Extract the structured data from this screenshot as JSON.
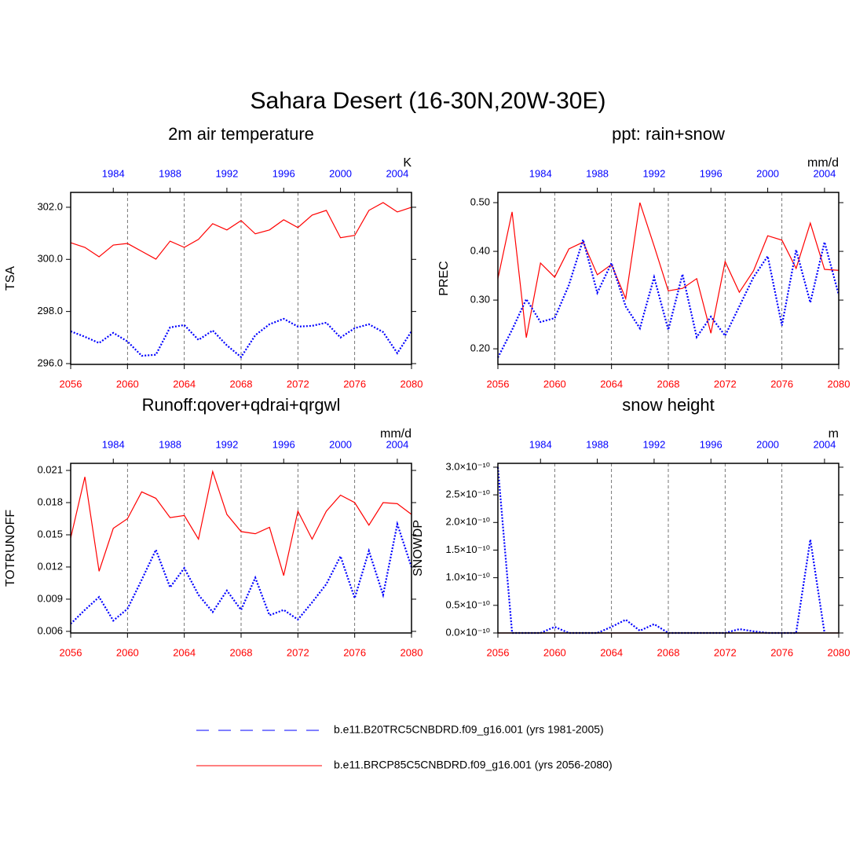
{
  "title": "Sahara Desert (16-30N,20W-30E)",
  "chart_data": [
    {
      "type": "line",
      "title": "2m air temperature",
      "units": "K",
      "ylabel": "TSA",
      "x": [
        2056,
        2057,
        2058,
        2059,
        2060,
        2061,
        2062,
        2063,
        2064,
        2065,
        2066,
        2067,
        2068,
        2069,
        2070,
        2071,
        2072,
        2073,
        2074,
        2075,
        2076,
        2077,
        2078,
        2079,
        2080
      ],
      "xlim": [
        2056,
        2080
      ],
      "xticks": [
        2056,
        2060,
        2064,
        2068,
        2072,
        2076,
        2080
      ],
      "xtick_color": "#ff0000",
      "x2lim": [
        1981,
        2005
      ],
      "x2ticks": [
        1984,
        1988,
        1992,
        1996,
        2000,
        2004
      ],
      "x2tick_color": "#0000ff",
      "ylim": [
        295.97,
        302.57
      ],
      "yticks": [
        {
          "value": 296,
          "label": "296.0"
        },
        {
          "value": 298,
          "label": "298.0"
        },
        {
          "value": 300,
          "label": "300.0"
        },
        {
          "value": 302,
          "label": "302.0"
        }
      ],
      "xgrid": true,
      "series": [
        {
          "name": "b.e11.B20TRC5CNBDRD.f09_g16.001 (yrs 1981-2005)",
          "color": "#0000ff",
          "style": "dotted",
          "values": [
            297.24,
            297.03,
            296.79,
            297.18,
            296.85,
            296.3,
            296.34,
            297.39,
            297.48,
            296.91,
            297.27,
            296.7,
            296.25,
            297.09,
            297.51,
            297.72,
            297.42,
            297.45,
            297.57,
            297.0,
            297.36,
            297.51,
            297.21,
            296.4,
            297.24
          ]
        },
        {
          "name": "b.e11.BRCP85C5CNBDRD.f09_g16.001 (yrs 2056-2080)",
          "color": "#ff0000",
          "style": "solid",
          "values": [
            300.64,
            300.46,
            300.1,
            300.55,
            300.61,
            300.31,
            300.01,
            300.7,
            300.46,
            300.77,
            301.37,
            301.13,
            301.49,
            300.98,
            301.13,
            301.52,
            301.22,
            301.7,
            301.88,
            300.83,
            300.92,
            301.88,
            302.18,
            301.82,
            302.0
          ]
        }
      ]
    },
    {
      "type": "line",
      "title": "ppt: rain+snow",
      "units": "mm/d",
      "ylabel": "PREC",
      "x": [
        2056,
        2057,
        2058,
        2059,
        2060,
        2061,
        2062,
        2063,
        2064,
        2065,
        2066,
        2067,
        2068,
        2069,
        2070,
        2071,
        2072,
        2073,
        2074,
        2075,
        2076,
        2077,
        2078,
        2079,
        2080
      ],
      "xlim": [
        2056,
        2080
      ],
      "xticks": [
        2056,
        2060,
        2064,
        2068,
        2072,
        2076,
        2080
      ],
      "xtick_color": "#ff0000",
      "x2lim": [
        1981,
        2005
      ],
      "x2ticks": [
        1984,
        1988,
        1992,
        1996,
        2000,
        2004
      ],
      "x2tick_color": "#0000ff",
      "ylim": [
        0.168,
        0.521
      ],
      "yticks": [
        {
          "value": 0.2,
          "label": "0.20"
        },
        {
          "value": 0.3,
          "label": "0.30"
        },
        {
          "value": 0.4,
          "label": "0.40"
        },
        {
          "value": 0.5,
          "label": "0.50"
        }
      ],
      "xgrid": true,
      "series": [
        {
          "color": "#0000ff",
          "style": "dotted",
          "values": [
            0.182,
            0.239,
            0.302,
            0.255,
            0.263,
            0.331,
            0.424,
            0.315,
            0.376,
            0.287,
            0.242,
            0.347,
            0.239,
            0.353,
            0.224,
            0.266,
            0.227,
            0.287,
            0.347,
            0.39,
            0.248,
            0.403,
            0.295,
            0.419,
            0.311
          ]
        },
        {
          "color": "#ff0000",
          "style": "solid",
          "values": [
            0.344,
            0.481,
            0.223,
            0.376,
            0.347,
            0.405,
            0.419,
            0.352,
            0.373,
            0.303,
            0.5,
            0.411,
            0.319,
            0.324,
            0.344,
            0.232,
            0.379,
            0.316,
            0.36,
            0.432,
            0.423,
            0.365,
            0.458,
            0.363,
            0.361
          ]
        }
      ]
    },
    {
      "type": "line",
      "title": "Runoff:qover+qdrai+qrgwl",
      "units": "mm/d",
      "ylabel": "TOTRUNOFF",
      "x": [
        2056,
        2057,
        2058,
        2059,
        2060,
        2061,
        2062,
        2063,
        2064,
        2065,
        2066,
        2067,
        2068,
        2069,
        2070,
        2071,
        2072,
        2073,
        2074,
        2075,
        2076,
        2077,
        2078,
        2079,
        2080
      ],
      "xlim": [
        2056,
        2080
      ],
      "xticks": [
        2056,
        2060,
        2064,
        2068,
        2072,
        2076,
        2080
      ],
      "xtick_color": "#ff0000",
      "x2lim": [
        1981,
        2005
      ],
      "x2ticks": [
        1984,
        1988,
        1992,
        1996,
        2000,
        2004
      ],
      "x2tick_color": "#0000ff",
      "ylim": [
        0.00585,
        0.02166
      ],
      "yticks": [
        0.006,
        0.009,
        0.012,
        0.015,
        0.018,
        0.021
      ],
      "xgrid": true,
      "series": [
        {
          "color": "#0000ff",
          "style": "dotted",
          "values": [
            0.0067,
            0.008,
            0.0092,
            0.007,
            0.0081,
            0.0108,
            0.0136,
            0.0101,
            0.0119,
            0.0094,
            0.0078,
            0.0098,
            0.008,
            0.011,
            0.0075,
            0.008,
            0.0071,
            0.0087,
            0.0104,
            0.013,
            0.0091,
            0.0135,
            0.0094,
            0.016,
            0.012
          ]
        },
        {
          "color": "#ff0000",
          "style": "solid",
          "values": [
            0.0147,
            0.0204,
            0.0116,
            0.0156,
            0.0165,
            0.019,
            0.0184,
            0.0166,
            0.0168,
            0.0146,
            0.0209,
            0.0169,
            0.0153,
            0.0151,
            0.0157,
            0.0112,
            0.0172,
            0.0146,
            0.0172,
            0.0187,
            0.018,
            0.0159,
            0.018,
            0.0179,
            0.0169
          ]
        }
      ]
    },
    {
      "type": "line",
      "title": "snow height",
      "units": "m",
      "ylabel": "SNOWDP",
      "x": [
        2056,
        2057,
        2058,
        2059,
        2060,
        2061,
        2062,
        2063,
        2064,
        2065,
        2066,
        2067,
        2068,
        2069,
        2070,
        2071,
        2072,
        2073,
        2074,
        2075,
        2076,
        2077,
        2078,
        2079,
        2080
      ],
      "xlim": [
        2056,
        2080
      ],
      "xticks": [
        2056,
        2060,
        2064,
        2068,
        2072,
        2076,
        2080
      ],
      "xtick_color": "#ff0000",
      "x2lim": [
        1981,
        2005
      ],
      "x2ticks": [
        1984,
        1988,
        1992,
        1996,
        2000,
        2004
      ],
      "x2tick_color": "#0000ff",
      "ylim": [
        0,
        3.07e-10
      ],
      "yticks": [
        {
          "value": 0,
          "label": "0.0×10⁻¹⁰"
        },
        {
          "value": 5e-11,
          "label": "0.5×10⁻¹⁰"
        },
        {
          "value": 1e-10,
          "label": "1.0×10⁻¹⁰"
        },
        {
          "value": 1.5e-10,
          "label": "1.5×10⁻¹⁰"
        },
        {
          "value": 2e-10,
          "label": "2.0×10⁻¹⁰"
        },
        {
          "value": 2.5e-10,
          "label": "2.5×10⁻¹⁰"
        },
        {
          "value": 3e-10,
          "label": "3.0×10⁻¹⁰"
        }
      ],
      "xgrid": true,
      "series": [
        {
          "color": "#0000ff",
          "style": "dotted",
          "values": [
            3e-10,
            0,
            0,
            0,
            1.1e-11,
            0,
            0,
            0,
            1.1e-11,
            2.4e-11,
            4e-12,
            1.6e-11,
            0,
            0,
            0,
            0,
            0,
            7e-12,
            3e-12,
            0,
            0,
            0,
            1.69e-10,
            0,
            null
          ]
        },
        {
          "color": "#ff0000",
          "style": "solid",
          "values": [
            0,
            0,
            0,
            0,
            0,
            0,
            0,
            0,
            0,
            0,
            0,
            0,
            0,
            0,
            0,
            0,
            0,
            0,
            0,
            0,
            0,
            0,
            0,
            0,
            0
          ]
        }
      ]
    }
  ]
}
